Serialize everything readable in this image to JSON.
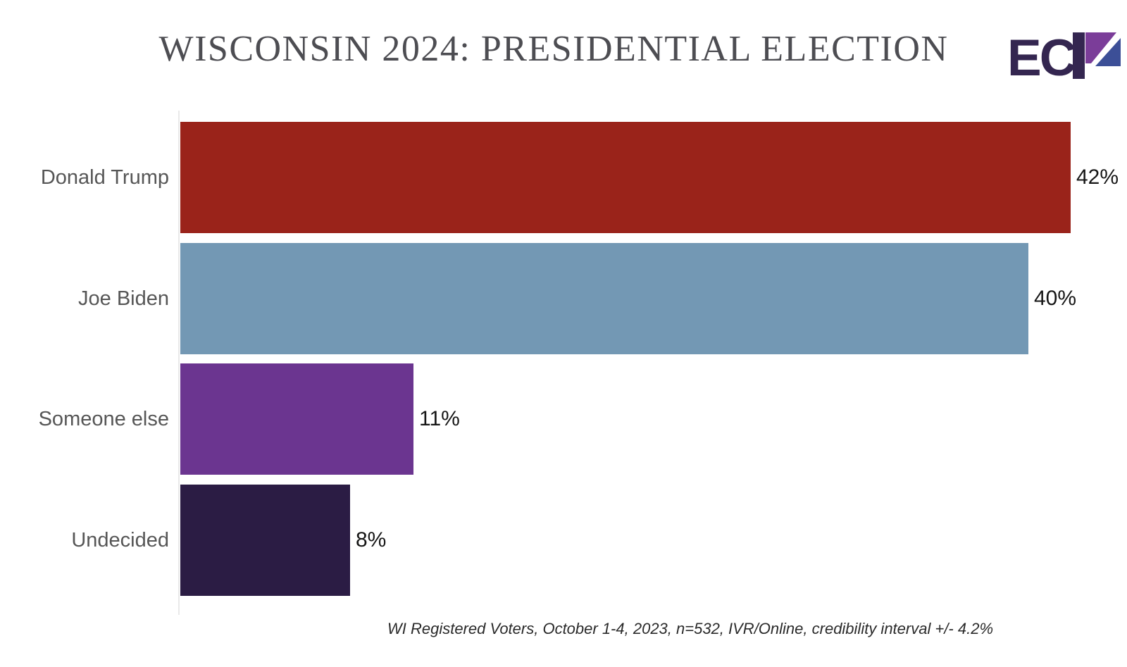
{
  "header": {
    "title": "WISCONSIN 2024: PRESIDENTIAL ELECTION",
    "logo": {
      "text": "EC",
      "name": "ECP",
      "dark_color": "#342650",
      "purple_color": "#7b3d99",
      "blue_color": "#3c4f97"
    }
  },
  "chart_data": {
    "type": "bar",
    "orientation": "horizontal",
    "title": "WISCONSIN 2024: PRESIDENTIAL ELECTION",
    "categories": [
      "Donald Trump",
      "Joe Biden",
      "Someone else",
      "Undecided"
    ],
    "values": [
      42,
      40,
      11,
      8
    ],
    "value_labels": [
      "42%",
      "40%",
      "11%",
      "8%"
    ],
    "bar_colors": [
      "#9a231a",
      "#7398b4",
      "#6b3590",
      "#2b1c44"
    ],
    "unit": "percent",
    "xlim": [
      0,
      42
    ],
    "grid": false,
    "legend": "none",
    "value_label_position": "end-of-bar",
    "axis_line_color": "#e9e9e9"
  },
  "footnote": {
    "text": "WI Registered Voters, October 1-4, 2023, n=532, IVR/Online, credibility interval +/- 4.2%"
  }
}
